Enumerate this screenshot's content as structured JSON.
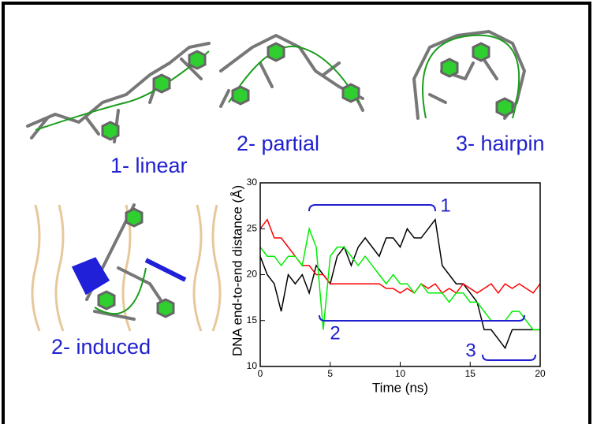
{
  "images": [
    {
      "label": "1- linear"
    },
    {
      "label": "2- partial"
    },
    {
      "label": "3- hairpin"
    },
    {
      "label": "2- induced"
    }
  ],
  "chart_data": {
    "type": "line",
    "xlabel": "Time (ns)",
    "ylabel": "DNA end-to-end distance (Å)",
    "x": [
      0,
      0.5,
      1,
      1.5,
      2,
      2.5,
      3,
      3.5,
      4,
      4.5,
      5,
      5.5,
      6,
      6.5,
      7,
      7.5,
      8,
      8.5,
      9,
      9.5,
      10,
      10.5,
      11,
      11.5,
      12,
      12.5,
      13,
      13.5,
      14,
      14.5,
      15,
      15.5,
      16,
      16.5,
      17,
      17.5,
      18,
      18.5,
      19,
      19.5,
      20
    ],
    "series": [
      {
        "color": "#000000",
        "values": [
          22,
          20,
          19,
          16,
          20,
          19,
          20,
          18,
          21,
          20,
          19,
          22,
          23,
          21,
          23,
          24,
          23,
          22,
          24,
          24,
          23,
          25,
          24,
          24,
          25,
          26,
          21,
          20,
          19,
          19,
          18,
          17,
          14,
          14,
          13,
          12,
          14,
          14,
          14,
          14,
          14
        ]
      },
      {
        "color": "#ff0000",
        "values": [
          25,
          26,
          24,
          24,
          23,
          22,
          21,
          21,
          20,
          20,
          19,
          19,
          19,
          19,
          19,
          19,
          19,
          19,
          18.5,
          18.5,
          18,
          18.5,
          18,
          19,
          18.5,
          19,
          18,
          18.5,
          18,
          19,
          18.5,
          18,
          18.5,
          19,
          18,
          19,
          18.5,
          19,
          18.5,
          18,
          19
        ]
      },
      {
        "color": "#00ee00",
        "values": [
          23,
          22,
          22,
          21,
          22,
          22,
          21,
          25,
          23,
          14,
          22,
          23,
          23,
          22,
          21,
          22,
          21,
          20,
          19,
          20,
          19,
          19,
          18,
          19,
          18,
          18,
          18,
          17,
          18,
          18,
          17,
          17,
          16,
          15,
          15,
          15,
          16,
          16,
          15,
          14,
          14
        ]
      }
    ],
    "xlim": [
      0,
      20
    ],
    "xticks": [
      0,
      5,
      10,
      15,
      20
    ],
    "ylim": [
      10,
      30
    ],
    "yticks": [
      10,
      15,
      20,
      25,
      30
    ],
    "annotations": [
      {
        "text": "1"
      },
      {
        "text": "2"
      },
      {
        "text": "3"
      }
    ]
  }
}
